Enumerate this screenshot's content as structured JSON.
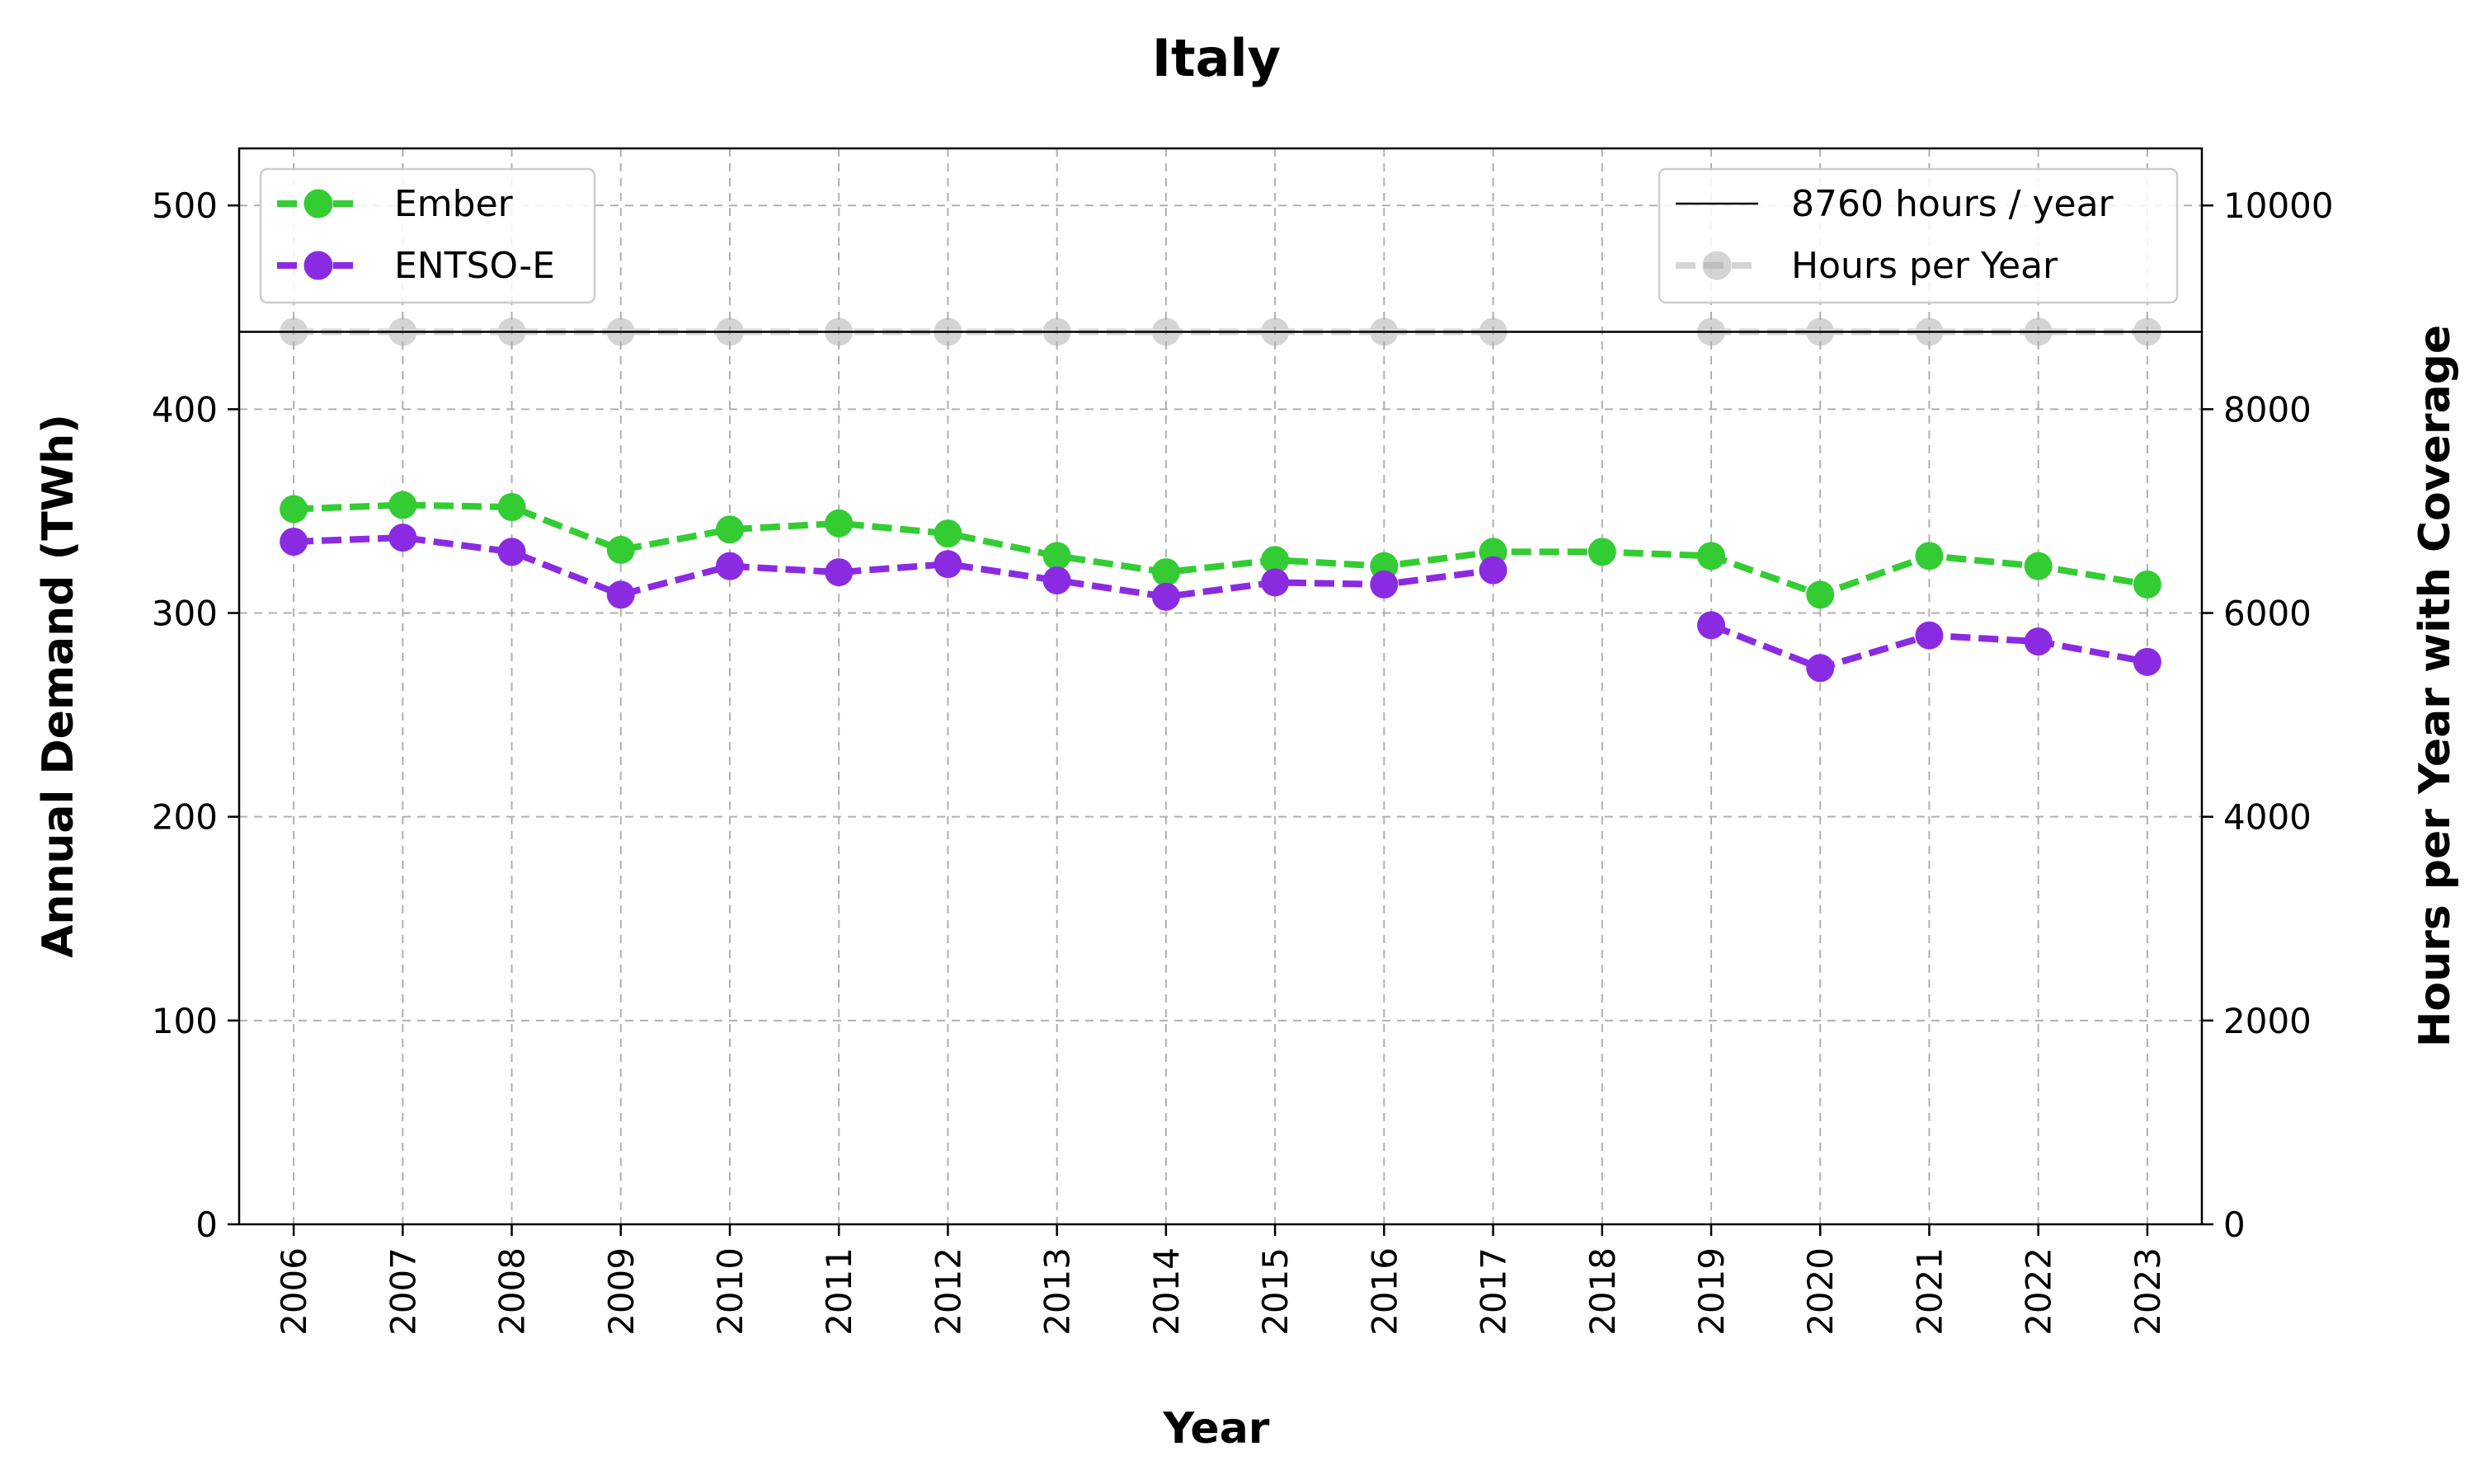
{
  "chart_data": {
    "type": "line",
    "title": "Italy",
    "xlabel": "Year",
    "ylabel": "Annual Demand (TWh)",
    "y2label": "Hours per Year with Coverage",
    "x": [
      2006,
      2007,
      2008,
      2009,
      2010,
      2011,
      2012,
      2013,
      2014,
      2015,
      2016,
      2017,
      2018,
      2019,
      2020,
      2021,
      2022,
      2023
    ],
    "ylim": [
      0,
      528
    ],
    "y2lim": [
      0,
      10560
    ],
    "yticks": [
      0,
      100,
      200,
      300,
      400,
      500
    ],
    "y2ticks": [
      0,
      2000,
      4000,
      6000,
      8000,
      10000
    ],
    "grid": true,
    "series": [
      {
        "name": "Ember",
        "axis": "left",
        "color": "#33cc33",
        "style": "dashed",
        "marker": "circle",
        "values": [
          351,
          353,
          352,
          331,
          341,
          344,
          339,
          328,
          320,
          326,
          323,
          330,
          330,
          328,
          309,
          328,
          323,
          314
        ]
      },
      {
        "name": "ENTSO-E",
        "axis": "left",
        "color": "#8a2be2",
        "style": "dashed",
        "marker": "circle",
        "values": [
          335,
          337,
          330,
          309,
          323,
          320,
          324,
          316,
          308,
          315,
          314,
          321,
          null,
          294,
          273,
          289,
          286,
          276
        ]
      },
      {
        "name": "Hours per Year",
        "axis": "right",
        "color": "#aaaaaa",
        "style": "dashed",
        "marker": "circle",
        "values": [
          8760,
          8760,
          8760,
          8760,
          8760,
          8760,
          8760,
          8760,
          8760,
          8760,
          8760,
          8760,
          null,
          8760,
          8760,
          8760,
          8760,
          8760
        ]
      }
    ],
    "reference_line": {
      "name": "8760 hours / year",
      "axis": "right",
      "value": 8760,
      "color": "#000000"
    },
    "legends": [
      {
        "placement": "top-left",
        "entries": [
          "Ember",
          "ENTSO-E"
        ]
      },
      {
        "placement": "top-right",
        "entries": [
          "8760 hours / year",
          "Hours per Year"
        ]
      }
    ]
  }
}
